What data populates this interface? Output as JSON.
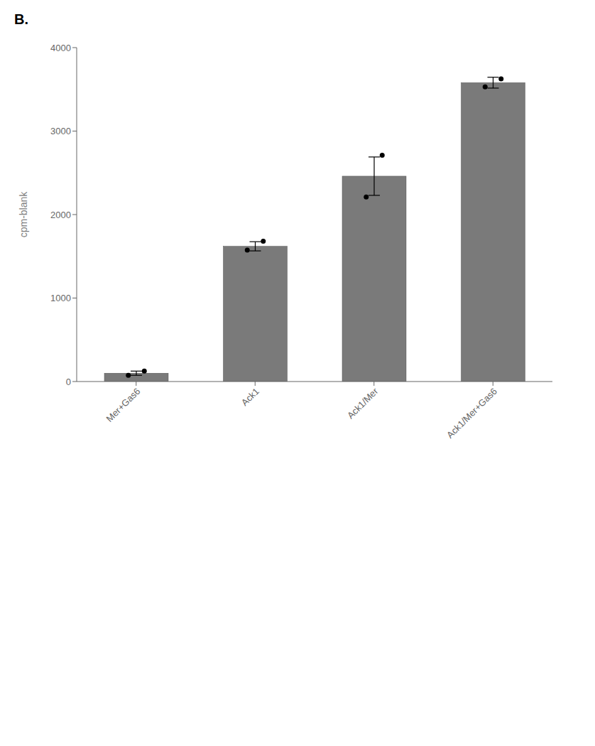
{
  "chart_data": {
    "type": "bar",
    "annotations": [
      "B."
    ],
    "categories": [
      "Mer+Gas6",
      "Ack1",
      "Ack1/Mer",
      "Ack1/Mer+Gas6"
    ],
    "values": [
      100,
      1620,
      2460,
      3580
    ],
    "errors": [
      25,
      55,
      230,
      65
    ],
    "points": [
      [
        75,
        125
      ],
      [
        1575,
        1680
      ],
      [
        2210,
        2710
      ],
      [
        3530,
        3625
      ]
    ],
    "color": "#7a7a7a",
    "ylabel": "cpm-blank",
    "ylim": [
      0,
      4000
    ],
    "yticks": [
      0,
      1000,
      2000,
      3000,
      4000
    ],
    "grid": false
  }
}
